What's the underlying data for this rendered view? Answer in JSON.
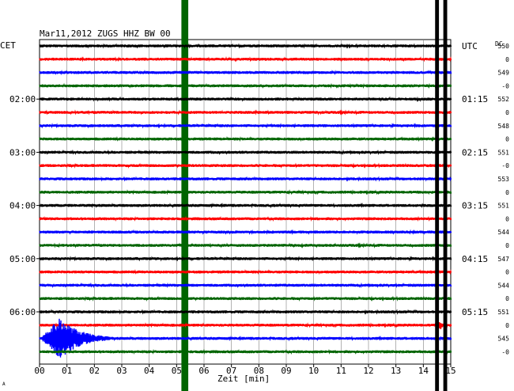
{
  "header": {
    "title": "Mar11,2012   ZUGS HHZ BW 00",
    "left_axis_label": "CET",
    "right_axis_label": "UTC",
    "dc_label": "DC",
    "corner_mark": "A"
  },
  "chart_data": {
    "type": "line",
    "title": "Mar11,2012   ZUGS HHZ BW 00",
    "xlabel": "Zeit [min]",
    "ylabel": "",
    "xlim": [
      0,
      15
    ],
    "x_ticks": [
      "00",
      "01",
      "02",
      "03",
      "04",
      "05",
      "06",
      "07",
      "08",
      "09",
      "10",
      "11",
      "12",
      "13",
      "14",
      "15"
    ],
    "trace_count": 24,
    "trace_colors": [
      "#000000",
      "#ff0000",
      "#0000ff",
      "#006400"
    ],
    "left_hour_labels": [
      {
        "trace": 4,
        "label": "02:00"
      },
      {
        "trace": 8,
        "label": "03:00"
      },
      {
        "trace": 12,
        "label": "04:00"
      },
      {
        "trace": 16,
        "label": "05:00"
      },
      {
        "trace": 20,
        "label": "06:00"
      }
    ],
    "right_hour_labels": [
      {
        "trace": 0,
        "label": "UTC"
      },
      {
        "trace": 4,
        "label": "01:15"
      },
      {
        "trace": 8,
        "label": "02:15"
      },
      {
        "trace": 12,
        "label": "03:15"
      },
      {
        "trace": 16,
        "label": "04:15"
      },
      {
        "trace": 20,
        "label": "05:15"
      }
    ],
    "dc_offsets": [
      "550",
      "0",
      "549",
      "-0",
      "552",
      "0",
      "548",
      "0",
      "551",
      "-0",
      "553",
      "0",
      "551",
      "0",
      "544",
      "0",
      "547",
      "0",
      "544",
      "0",
      "551",
      "0",
      "545",
      "-0"
    ],
    "vertical_markers": [
      {
        "minute": 5.3,
        "color": "#006400",
        "width_min": 0.25
      },
      {
        "minute": 14.5,
        "color": "#000000",
        "width_min": 0.14
      },
      {
        "minute": 14.8,
        "color": "#000000",
        "width_min": 0.14
      }
    ],
    "events": [
      {
        "trace": 22,
        "start_min": 0.0,
        "peak_min": 0.75,
        "end_min": 3.0,
        "peak_amplitude": 26
      },
      {
        "trace": 21,
        "start_min": 14.3,
        "peak_min": 14.6,
        "end_min": 15.0,
        "peak_amplitude": 6
      }
    ]
  }
}
